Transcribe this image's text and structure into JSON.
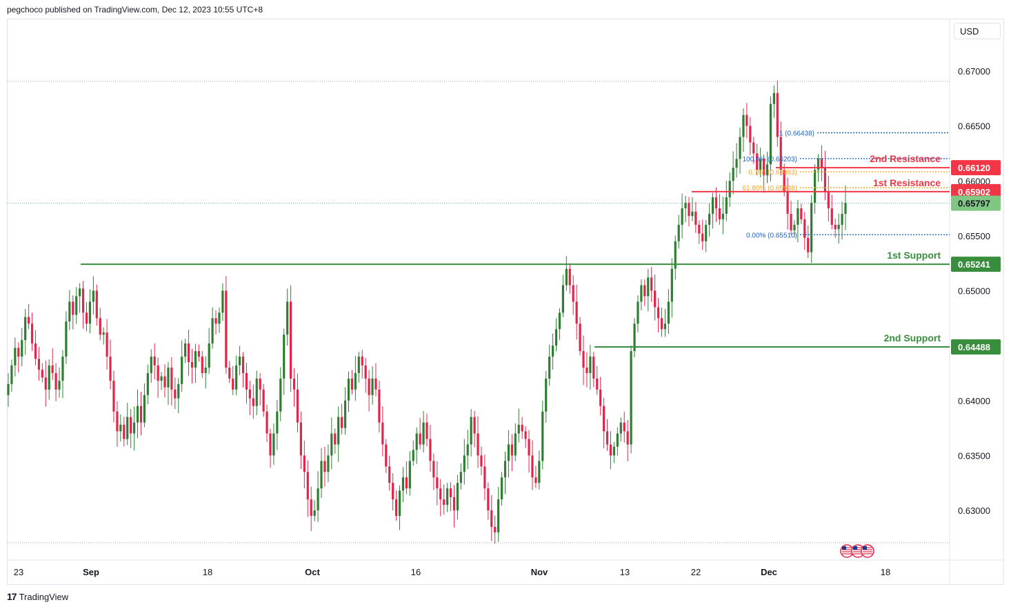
{
  "header": {
    "text": "pegchoco published on TradingView.com, Dec 12, 2023 10:55 UTC+8"
  },
  "footer": {
    "brand": "TradingView"
  },
  "currency": "USD",
  "colors": {
    "up": "#2f7d32",
    "down": "#e0254a",
    "resistance": "#f23645",
    "support": "#388e3c",
    "fib_blue": "#1e63c8",
    "fib_orange": "#f5a623",
    "current": "#81c784"
  },
  "chart_data": {
    "type": "candlestick",
    "ylim": [
      0.6266,
      0.6706
    ],
    "y_ticks": [
      "0.67000",
      "0.66500",
      "0.66000",
      "0.65500",
      "0.65000",
      "0.64000",
      "0.63500",
      "0.63000"
    ],
    "x_ticks": [
      "23",
      "Sep",
      "18",
      "Oct",
      "16",
      "Nov",
      "13",
      "22",
      "Dec",
      "18"
    ],
    "current_price": "0.65797",
    "levels": [
      {
        "label": "2nd Resistance",
        "price": "0.66120",
        "kind": "resistance"
      },
      {
        "label": "1st Resistance",
        "price": "0.65902",
        "kind": "resistance"
      },
      {
        "label": "1st Support",
        "price": "0.65241",
        "kind": "support"
      },
      {
        "label": "2nd Support",
        "price": "0.64488",
        "kind": "support"
      }
    ],
    "fib_levels": [
      {
        "text": "1 (0.66438)",
        "price": 0.66438,
        "color": "blue"
      },
      {
        "text": "100.0% (0.66203)",
        "price": 0.66203,
        "color": "blue"
      },
      {
        "text": "0.786 (0.66083)",
        "price": 0.66083,
        "color": "orange"
      },
      {
        "text": "61.80% (0.65938)",
        "price": 0.65938,
        "color": "orange"
      },
      {
        "text": "0.00% (0.65510)",
        "price": 0.6551,
        "color": "blue"
      }
    ],
    "candles_close": [
      0.6415,
      0.6432,
      0.6448,
      0.644,
      0.6455,
      0.6476,
      0.647,
      0.6452,
      0.6438,
      0.6428,
      0.6421,
      0.641,
      0.6432,
      0.6425,
      0.641,
      0.6418,
      0.644,
      0.6472,
      0.649,
      0.6478,
      0.6495,
      0.6502,
      0.648,
      0.647,
      0.649,
      0.65,
      0.6475,
      0.646,
      0.6462,
      0.644,
      0.6418,
      0.639,
      0.6372,
      0.6378,
      0.6365,
      0.6385,
      0.637,
      0.638,
      0.6395,
      0.638,
      0.6405,
      0.6425,
      0.644,
      0.6432,
      0.6418,
      0.6422,
      0.6412,
      0.643,
      0.641,
      0.6402,
      0.6415,
      0.644,
      0.6452,
      0.6435,
      0.643,
      0.6445,
      0.644,
      0.6425,
      0.643,
      0.6452,
      0.6475,
      0.647,
      0.648,
      0.65,
      0.643,
      0.642,
      0.641,
      0.6432,
      0.644,
      0.6425,
      0.641,
      0.6402,
      0.6395,
      0.642,
      0.641,
      0.639,
      0.637,
      0.635,
      0.637,
      0.639,
      0.642,
      0.646,
      0.649,
      0.642,
      0.641,
      0.638,
      0.635,
      0.6335,
      0.631,
      0.6295,
      0.63,
      0.632,
      0.6345,
      0.6335,
      0.635,
      0.637,
      0.636,
      0.6385,
      0.6375,
      0.64,
      0.642,
      0.641,
      0.6425,
      0.644,
      0.6432,
      0.642,
      0.6405,
      0.642,
      0.641,
      0.638,
      0.636,
      0.634,
      0.6325,
      0.631,
      0.6295,
      0.6318,
      0.633,
      0.632,
      0.6345,
      0.6355,
      0.637,
      0.636,
      0.638,
      0.6365,
      0.6345,
      0.633,
      0.632,
      0.631,
      0.6305,
      0.632,
      0.6312,
      0.63,
      0.6325,
      0.6335,
      0.635,
      0.636,
      0.6385,
      0.637,
      0.635,
      0.634,
      0.632,
      0.63,
      0.6285,
      0.628,
      0.631,
      0.633,
      0.6345,
      0.636,
      0.635,
      0.637,
      0.6378,
      0.6372,
      0.6365,
      0.635,
      0.633,
      0.6325,
      0.6345,
      0.639,
      0.642,
      0.644,
      0.645,
      0.6465,
      0.648,
      0.6505,
      0.652,
      0.6505,
      0.649,
      0.647,
      0.6445,
      0.643,
      0.6425,
      0.644,
      0.642,
      0.641,
      0.6395,
      0.6372,
      0.636,
      0.635,
      0.6358,
      0.637,
      0.638,
      0.6372,
      0.636,
      0.6445,
      0.647,
      0.649,
      0.6505,
      0.6495,
      0.6512,
      0.65,
      0.6485,
      0.6475,
      0.6465,
      0.647,
      0.649,
      0.652,
      0.6545,
      0.656,
      0.6575,
      0.658,
      0.6568,
      0.6572,
      0.656,
      0.6552,
      0.6545,
      0.656,
      0.657,
      0.6585,
      0.6575,
      0.6565,
      0.657,
      0.6585,
      0.66,
      0.6612,
      0.662,
      0.664,
      0.666,
      0.665,
      0.6635,
      0.6625,
      0.661,
      0.662,
      0.6605,
      0.6615,
      0.667,
      0.668,
      0.664,
      0.661,
      0.659,
      0.657,
      0.6555,
      0.656,
      0.6575,
      0.6565,
      0.6548,
      0.6535,
      0.658,
      0.661,
      0.662,
      0.6612,
      0.659,
      0.6575,
      0.656,
      0.6556,
      0.656,
      0.657,
      0.658
    ]
  }
}
